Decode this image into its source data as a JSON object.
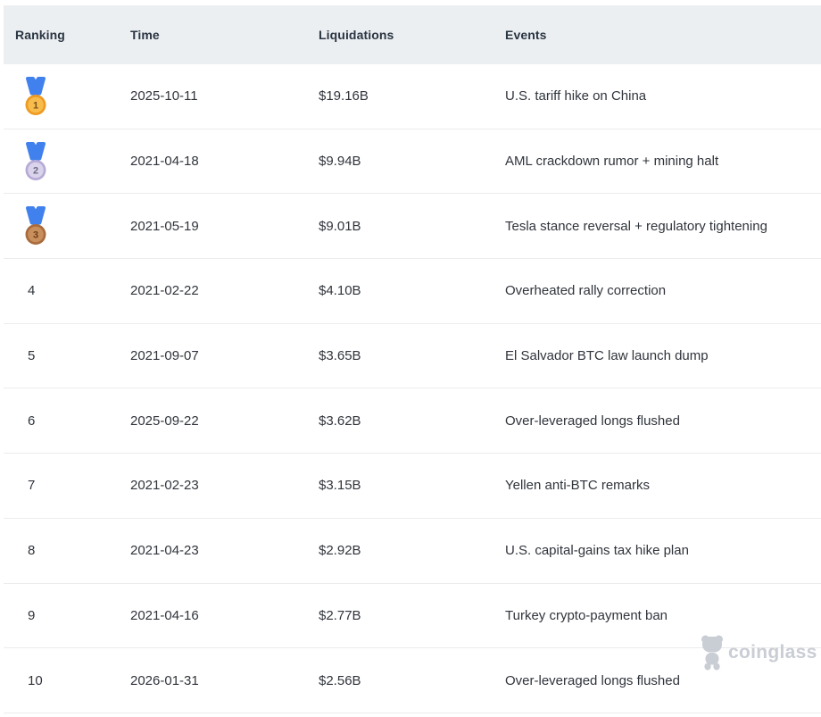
{
  "colors": {
    "header_bg": "#ECEFF2",
    "row_divider": "#ECECEC",
    "header_text": "#2A3542",
    "body_text": "#30343B",
    "ribbon_blue": "#4181EE",
    "medal_gold": "#F8BC4D",
    "medal_silver": "#DAD3EC",
    "medal_bronze": "#C88F5D",
    "watermark_gray": "#C9CDD4"
  },
  "table": {
    "columns": [
      {
        "key": "ranking",
        "label": "Ranking"
      },
      {
        "key": "time",
        "label": "Time"
      },
      {
        "key": "liquidations",
        "label": "Liquidations"
      },
      {
        "key": "events",
        "label": "Events"
      }
    ],
    "rows": [
      {
        "rank": "1",
        "medal": "gold",
        "time": "2025-10-11",
        "liquidations": "$19.16B",
        "event": "U.S. tariff hike on China"
      },
      {
        "rank": "2",
        "medal": "silver",
        "time": "2021-04-18",
        "liquidations": "$9.94B",
        "event": "AML crackdown rumor + mining halt"
      },
      {
        "rank": "3",
        "medal": "bronze",
        "time": "2021-05-19",
        "liquidations": "$9.01B",
        "event": "Tesla stance reversal + regulatory tightening"
      },
      {
        "rank": "4",
        "medal": null,
        "time": "2021-02-22",
        "liquidations": "$4.10B",
        "event": "Overheated rally correction"
      },
      {
        "rank": "5",
        "medal": null,
        "time": "2021-09-07",
        "liquidations": "$3.65B",
        "event": "El Salvador BTC law launch dump"
      },
      {
        "rank": "6",
        "medal": null,
        "time": "2025-09-22",
        "liquidations": "$3.62B",
        "event": "Over-leveraged longs flushed"
      },
      {
        "rank": "7",
        "medal": null,
        "time": "2021-02-23",
        "liquidations": "$3.15B",
        "event": "Yellen anti-BTC remarks"
      },
      {
        "rank": "8",
        "medal": null,
        "time": "2021-04-23",
        "liquidations": "$2.92B",
        "event": "U.S. capital-gains tax hike plan"
      },
      {
        "rank": "9",
        "medal": null,
        "time": "2021-04-16",
        "liquidations": "$2.77B",
        "event": "Turkey crypto-payment ban"
      },
      {
        "rank": "10",
        "medal": null,
        "time": "2026-01-31",
        "liquidations": "$2.56B",
        "event": "Over-leveraged longs flushed"
      }
    ]
  },
  "watermark": {
    "label": "coinglass",
    "icon": "coinglass-bear-icon"
  }
}
